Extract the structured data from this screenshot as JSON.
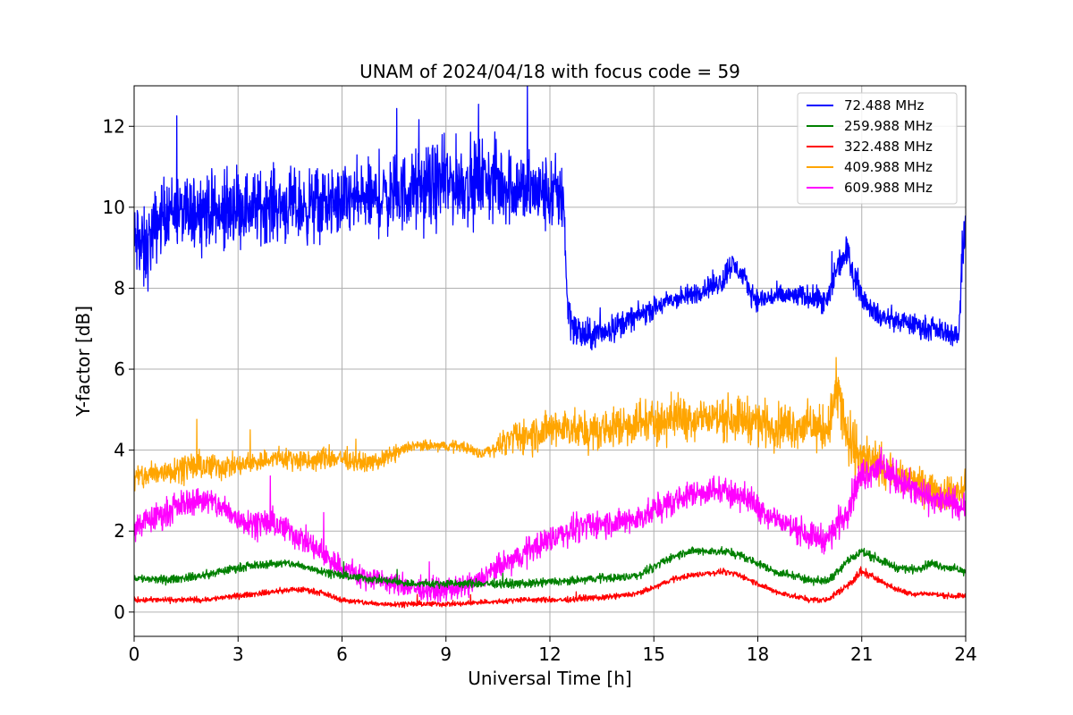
{
  "chart_data": {
    "type": "line",
    "title": "UNAM of 2024/04/18 with focus code = 59",
    "xlabel": "Universal Time [h]",
    "ylabel": "Y-factor [dB]",
    "xlim": [
      0,
      24
    ],
    "ylim": [
      -0.6,
      13.0
    ],
    "xticks": [
      0,
      3,
      6,
      9,
      12,
      15,
      18,
      21,
      24
    ],
    "xtick_labels": [
      "0",
      "3",
      "6",
      "9",
      "12",
      "15",
      "18",
      "21",
      "24"
    ],
    "yticks": [
      0,
      2,
      4,
      6,
      8,
      10,
      12
    ],
    "ytick_labels": [
      "0",
      "2",
      "4",
      "6",
      "8",
      "10",
      "12"
    ],
    "grid": true,
    "legend_position": "top-right",
    "series": [
      {
        "name": " 72.488 MHz",
        "color": "#0000ff",
        "x": [
          0,
          0.1,
          0.2,
          0.3,
          0.5,
          0.8,
          1.0,
          1.5,
          2.0,
          2.5,
          3.0,
          3.5,
          4.0,
          4.5,
          5.0,
          5.5,
          6.0,
          6.5,
          7.0,
          7.5,
          8.0,
          8.5,
          9.0,
          9.5,
          10.0,
          10.5,
          11.0,
          11.5,
          12.0,
          12.4,
          12.5,
          12.7,
          13.0,
          13.5,
          14.0,
          14.5,
          15.0,
          15.5,
          16.0,
          16.5,
          17.0,
          17.2,
          17.5,
          17.8,
          18.0,
          18.5,
          19.0,
          19.5,
          20.0,
          20.3,
          20.6,
          20.8,
          21.0,
          21.2,
          21.5,
          22.0,
          22.5,
          23.0,
          23.5,
          23.8,
          23.9,
          24.0
        ],
        "y_center": [
          9.0,
          9.2,
          9.0,
          8.8,
          9.3,
          9.8,
          10.0,
          9.8,
          10.0,
          9.8,
          10.0,
          10.0,
          10.1,
          10.0,
          10.0,
          10.1,
          10.1,
          10.2,
          10.2,
          10.3,
          10.4,
          10.5,
          10.6,
          10.6,
          10.7,
          10.6,
          10.5,
          10.4,
          10.3,
          10.3,
          7.6,
          7.0,
          6.8,
          6.9,
          7.1,
          7.3,
          7.5,
          7.7,
          7.8,
          8.0,
          8.2,
          8.6,
          8.4,
          7.9,
          7.7,
          7.8,
          7.8,
          7.8,
          7.6,
          8.6,
          8.9,
          8.3,
          7.8,
          7.6,
          7.3,
          7.2,
          7.1,
          7.0,
          6.9,
          6.8,
          9.0,
          9.5
        ],
        "y_spread": [
          1.6,
          1.6,
          1.6,
          1.6,
          1.4,
          1.3,
          1.2,
          1.3,
          1.3,
          1.3,
          1.3,
          1.3,
          1.3,
          1.3,
          1.3,
          1.3,
          1.3,
          1.3,
          1.3,
          1.4,
          1.4,
          1.5,
          1.5,
          1.5,
          1.5,
          1.5,
          1.4,
          1.4,
          1.4,
          1.4,
          0.8,
          0.7,
          0.6,
          0.5,
          0.5,
          0.4,
          0.4,
          0.4,
          0.4,
          0.4,
          0.5,
          0.5,
          0.4,
          0.4,
          0.4,
          0.4,
          0.4,
          0.4,
          0.5,
          0.6,
          0.6,
          0.6,
          0.4,
          0.4,
          0.4,
          0.4,
          0.4,
          0.4,
          0.4,
          0.4,
          1.2,
          1.2
        ]
      },
      {
        "name": " 259.988 MHz",
        "color": "#008000",
        "x": [
          0,
          0.5,
          1.0,
          1.5,
          2.0,
          2.5,
          3.0,
          3.5,
          4.0,
          4.5,
          5.0,
          5.5,
          6.0,
          6.5,
          7.0,
          7.5,
          8.0,
          8.5,
          9.0,
          9.5,
          10.0,
          10.5,
          11.0,
          11.5,
          12.0,
          12.5,
          13.0,
          13.5,
          14.0,
          14.5,
          15.0,
          15.5,
          16.0,
          16.5,
          17.0,
          17.5,
          18.0,
          18.5,
          19.0,
          19.5,
          20.0,
          20.5,
          21.0,
          21.5,
          22.0,
          22.5,
          23.0,
          23.5,
          24.0
        ],
        "y_center": [
          0.85,
          0.8,
          0.8,
          0.85,
          0.9,
          1.0,
          1.1,
          1.15,
          1.2,
          1.2,
          1.1,
          1.0,
          0.9,
          0.85,
          0.8,
          0.75,
          0.7,
          0.7,
          0.7,
          0.7,
          0.7,
          0.7,
          0.7,
          0.7,
          0.75,
          0.75,
          0.8,
          0.85,
          0.85,
          0.9,
          1.1,
          1.35,
          1.5,
          1.5,
          1.5,
          1.4,
          1.2,
          1.0,
          0.9,
          0.8,
          0.75,
          1.2,
          1.5,
          1.3,
          1.1,
          1.05,
          1.2,
          1.1,
          1.0
        ],
        "y_spread": [
          0.15,
          0.15,
          0.15,
          0.15,
          0.15,
          0.15,
          0.15,
          0.15,
          0.15,
          0.15,
          0.15,
          0.15,
          0.15,
          0.15,
          0.15,
          0.15,
          0.15,
          0.15,
          0.15,
          0.15,
          0.15,
          0.15,
          0.15,
          0.15,
          0.15,
          0.15,
          0.15,
          0.15,
          0.15,
          0.15,
          0.15,
          0.15,
          0.15,
          0.15,
          0.15,
          0.15,
          0.15,
          0.15,
          0.15,
          0.15,
          0.15,
          0.2,
          0.2,
          0.15,
          0.15,
          0.15,
          0.15,
          0.15,
          0.15
        ]
      },
      {
        "name": " 322.488 MHz",
        "color": "#ff0000",
        "x": [
          0,
          0.5,
          1.0,
          1.5,
          2.0,
          2.5,
          3.0,
          3.5,
          4.0,
          4.5,
          5.0,
          5.5,
          6.0,
          6.5,
          7.0,
          7.5,
          8.0,
          8.5,
          9.0,
          9.5,
          10.0,
          10.5,
          11.0,
          11.5,
          12.0,
          12.5,
          13.0,
          13.5,
          14.0,
          14.5,
          15.0,
          15.5,
          16.0,
          16.5,
          17.0,
          17.5,
          18.0,
          18.5,
          19.0,
          19.5,
          20.0,
          20.5,
          21.0,
          21.5,
          22.0,
          22.5,
          23.0,
          23.5,
          24.0
        ],
        "y_center": [
          0.3,
          0.3,
          0.3,
          0.3,
          0.3,
          0.35,
          0.4,
          0.45,
          0.5,
          0.55,
          0.55,
          0.45,
          0.3,
          0.25,
          0.2,
          0.2,
          0.2,
          0.2,
          0.2,
          0.2,
          0.25,
          0.25,
          0.3,
          0.3,
          0.3,
          0.3,
          0.35,
          0.35,
          0.4,
          0.45,
          0.6,
          0.8,
          0.9,
          0.95,
          1.0,
          0.9,
          0.7,
          0.5,
          0.4,
          0.3,
          0.3,
          0.6,
          1.0,
          0.8,
          0.55,
          0.45,
          0.45,
          0.4,
          0.4
        ],
        "y_spread": [
          0.1,
          0.1,
          0.1,
          0.1,
          0.1,
          0.1,
          0.1,
          0.1,
          0.1,
          0.1,
          0.1,
          0.1,
          0.1,
          0.1,
          0.1,
          0.1,
          0.1,
          0.1,
          0.1,
          0.1,
          0.1,
          0.1,
          0.1,
          0.1,
          0.1,
          0.1,
          0.1,
          0.1,
          0.1,
          0.1,
          0.1,
          0.1,
          0.1,
          0.1,
          0.1,
          0.1,
          0.1,
          0.1,
          0.1,
          0.1,
          0.1,
          0.15,
          0.2,
          0.1,
          0.1,
          0.1,
          0.1,
          0.1,
          0.1
        ]
      },
      {
        "name": " 409.988 MHz",
        "color": "#ffa500",
        "x": [
          0,
          0.5,
          1.0,
          1.5,
          2.0,
          2.5,
          3.0,
          3.5,
          4.0,
          4.5,
          5.0,
          5.5,
          6.0,
          6.5,
          7.0,
          7.5,
          8.0,
          8.5,
          9.0,
          9.5,
          10.0,
          10.5,
          11.0,
          11.5,
          12.0,
          12.5,
          13.0,
          13.5,
          14.0,
          14.5,
          15.0,
          15.5,
          16.0,
          16.5,
          17.0,
          17.5,
          18.0,
          18.5,
          19.0,
          19.5,
          20.0,
          20.3,
          20.6,
          21.0,
          21.5,
          22.0,
          22.5,
          23.0,
          23.5,
          24.0
        ],
        "y_center": [
          3.3,
          3.4,
          3.5,
          3.6,
          3.6,
          3.6,
          3.6,
          3.7,
          3.8,
          3.8,
          3.7,
          3.8,
          3.8,
          3.7,
          3.7,
          3.9,
          4.1,
          4.1,
          4.1,
          4.1,
          3.9,
          4.1,
          4.3,
          4.4,
          4.5,
          4.6,
          4.4,
          4.5,
          4.6,
          4.7,
          4.7,
          4.8,
          4.8,
          4.8,
          4.8,
          4.8,
          4.7,
          4.6,
          4.6,
          4.6,
          4.5,
          5.5,
          4.2,
          3.8,
          3.6,
          3.4,
          3.2,
          3.0,
          2.9,
          3.0
        ],
        "y_spread": [
          0.5,
          0.5,
          0.5,
          0.5,
          0.5,
          0.5,
          0.4,
          0.4,
          0.4,
          0.4,
          0.4,
          0.4,
          0.4,
          0.3,
          0.3,
          0.3,
          0.2,
          0.2,
          0.2,
          0.2,
          0.2,
          0.3,
          0.6,
          0.7,
          0.7,
          0.7,
          0.7,
          0.7,
          0.8,
          0.8,
          0.8,
          0.8,
          0.8,
          0.8,
          0.8,
          0.8,
          0.8,
          0.8,
          0.8,
          0.8,
          0.8,
          1.2,
          1.2,
          1.0,
          0.7,
          0.7,
          0.6,
          0.6,
          0.6,
          0.6
        ]
      },
      {
        "name": " 609.988 MHz",
        "color": "#ff00ff",
        "x": [
          0,
          0.5,
          1.0,
          1.5,
          2.0,
          2.5,
          3.0,
          3.5,
          4.0,
          4.5,
          5.0,
          5.5,
          6.0,
          6.5,
          7.0,
          7.5,
          8.0,
          8.5,
          9.0,
          9.5,
          10.0,
          10.5,
          11.0,
          11.5,
          12.0,
          12.5,
          13.0,
          13.5,
          14.0,
          14.5,
          15.0,
          15.5,
          16.0,
          16.5,
          17.0,
          17.5,
          18.0,
          18.5,
          19.0,
          19.5,
          20.0,
          20.5,
          21.0,
          21.5,
          22.0,
          22.5,
          23.0,
          23.5,
          24.0
        ],
        "y_center": [
          2.1,
          2.3,
          2.5,
          2.7,
          2.8,
          2.6,
          2.3,
          2.2,
          2.2,
          2.0,
          1.7,
          1.4,
          1.1,
          0.9,
          0.8,
          0.7,
          0.6,
          0.55,
          0.55,
          0.6,
          0.8,
          1.1,
          1.3,
          1.6,
          1.8,
          2.0,
          2.1,
          2.2,
          2.2,
          2.3,
          2.5,
          2.7,
          2.9,
          3.0,
          3.0,
          2.9,
          2.6,
          2.3,
          2.1,
          1.9,
          1.8,
          2.4,
          3.4,
          3.6,
          3.3,
          3.0,
          2.8,
          2.7,
          2.6
        ],
        "y_spread": [
          0.5,
          0.5,
          0.5,
          0.5,
          0.5,
          0.5,
          0.5,
          0.5,
          0.5,
          0.5,
          0.5,
          0.5,
          0.45,
          0.45,
          0.4,
          0.4,
          0.4,
          0.4,
          0.4,
          0.4,
          0.4,
          0.45,
          0.5,
          0.5,
          0.5,
          0.5,
          0.5,
          0.5,
          0.5,
          0.5,
          0.5,
          0.5,
          0.5,
          0.5,
          0.5,
          0.5,
          0.5,
          0.5,
          0.5,
          0.5,
          0.5,
          0.6,
          0.6,
          0.6,
          0.6,
          0.6,
          0.5,
          0.5,
          0.5
        ]
      }
    ]
  }
}
